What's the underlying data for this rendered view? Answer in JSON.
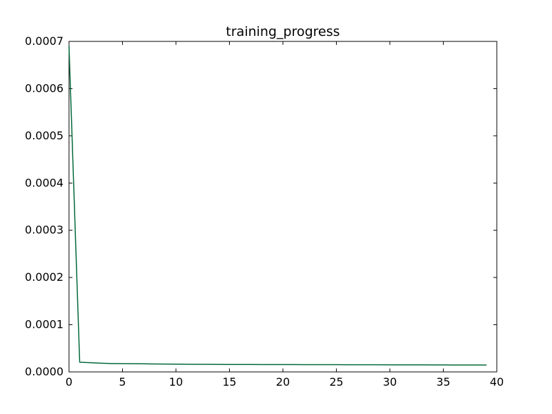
{
  "chart_data": {
    "type": "line",
    "title": "training_progress",
    "xlabel": "",
    "ylabel": "",
    "xlim": [
      0,
      40
    ],
    "ylim": [
      0,
      0.0007
    ],
    "x_ticks": [
      0,
      5,
      10,
      15,
      20,
      25,
      30,
      35,
      40
    ],
    "x_tick_labels": [
      "0",
      "5",
      "10",
      "15",
      "20",
      "25",
      "30",
      "35",
      "40"
    ],
    "y_ticks": [
      0,
      0.0001,
      0.0002,
      0.0003,
      0.0004,
      0.0005,
      0.0006,
      0.0007
    ],
    "y_tick_labels": [
      "0.0000",
      "0.0001",
      "0.0002",
      "0.0003",
      "0.0004",
      "0.0005",
      "0.0006",
      "0.0007"
    ],
    "grid": false,
    "legend": false,
    "series": [
      {
        "color": "#006837",
        "x": [
          0,
          1,
          2,
          3,
          4,
          5,
          6,
          7,
          8,
          9,
          10,
          11,
          12,
          13,
          14,
          15,
          16,
          17,
          18,
          19,
          20,
          21,
          22,
          23,
          24,
          25,
          26,
          27,
          28,
          29,
          30,
          31,
          32,
          33,
          34,
          35,
          36,
          37,
          38,
          39
        ],
        "y": [
          0.00069,
          2.05e-05,
          1.95e-05,
          1.85e-05,
          1.78e-05,
          1.75e-05,
          1.73e-05,
          1.71e-05,
          1.69e-05,
          1.67e-05,
          1.65e-05,
          1.63e-05,
          1.61e-05,
          1.6e-05,
          1.59e-05,
          1.58e-05,
          1.57e-05,
          1.57e-05,
          1.56e-05,
          1.56e-05,
          1.55e-05,
          1.55e-05,
          1.54e-05,
          1.54e-05,
          1.53e-05,
          1.53e-05,
          1.52e-05,
          1.52e-05,
          1.51e-05,
          1.51e-05,
          1.5e-05,
          1.5e-05,
          1.49e-05,
          1.49e-05,
          1.48e-05,
          1.48e-05,
          1.47e-05,
          1.47e-05,
          1.46e-05,
          1.46e-05
        ]
      }
    ]
  }
}
